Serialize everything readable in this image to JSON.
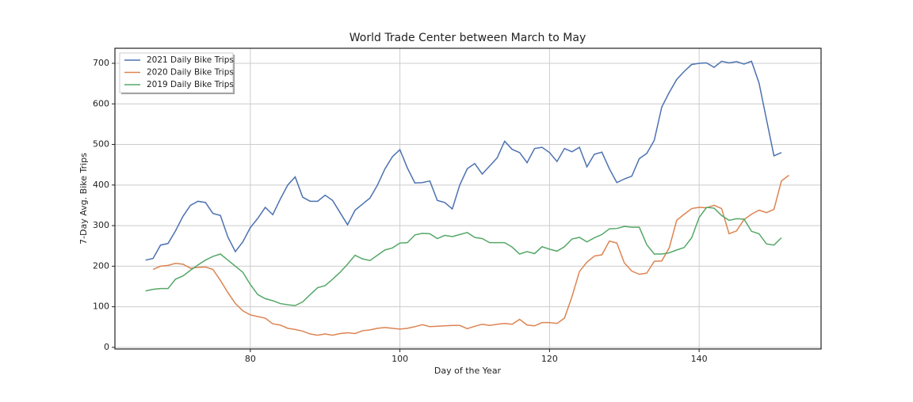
{
  "chart_data": {
    "type": "line",
    "title": "World Trade Center between March to May",
    "xlabel": "Day of the Year",
    "ylabel": "7-Day Avg. Bike Trips",
    "x": [
      66,
      67,
      68,
      69,
      70,
      71,
      72,
      73,
      74,
      75,
      76,
      77,
      78,
      79,
      80,
      81,
      82,
      83,
      84,
      85,
      86,
      87,
      88,
      89,
      90,
      91,
      92,
      93,
      94,
      95,
      96,
      97,
      98,
      99,
      100,
      101,
      102,
      103,
      104,
      105,
      106,
      107,
      108,
      109,
      110,
      111,
      112,
      113,
      114,
      115,
      116,
      117,
      118,
      119,
      120,
      121,
      122,
      123,
      124,
      125,
      126,
      127,
      128,
      129,
      130,
      131,
      132,
      133,
      134,
      135,
      136,
      137,
      138,
      139,
      140,
      141,
      142,
      143,
      144,
      145,
      146,
      147,
      148,
      149,
      150,
      151,
      152
    ],
    "series": [
      {
        "name": "2021 Daily Bike Trips",
        "color": "#4c72b0",
        "values": [
          215,
          219,
          252,
          256,
          287,
          323,
          350,
          360,
          357,
          330,
          325,
          272,
          236,
          260,
          295,
          318,
          345,
          327,
          365,
          400,
          420,
          370,
          360,
          360,
          375,
          362,
          332,
          302,
          338,
          353,
          368,
          400,
          440,
          470,
          487,
          442,
          405,
          406,
          410,
          362,
          357,
          341,
          400,
          440,
          453,
          427,
          447,
          467,
          508,
          488,
          480,
          455,
          490,
          493,
          480,
          458,
          490,
          482,
          493,
          445,
          476,
          481,
          440,
          406,
          415,
          422,
          465,
          478,
          510,
          592,
          628,
          660,
          680,
          697,
          700,
          701,
          690,
          705,
          701,
          704,
          698,
          705,
          652,
          562,
          472,
          480,
          null
        ]
      },
      {
        "name": "2020 Daily Bike Trips",
        "color": "#dd8452",
        "values": [
          null,
          192,
          200,
          202,
          207,
          205,
          195,
          197,
          198,
          192,
          165,
          135,
          108,
          90,
          80,
          76,
          72,
          58,
          55,
          47,
          44,
          40,
          33,
          30,
          33,
          30,
          34,
          36,
          34,
          41,
          43,
          47,
          49,
          47,
          45,
          47,
          51,
          56,
          51,
          52,
          53,
          54,
          54,
          46,
          52,
          57,
          54,
          57,
          59,
          57,
          69,
          55,
          53,
          61,
          61,
          59,
          72,
          125,
          187,
          210,
          225,
          228,
          262,
          257,
          208,
          188,
          180,
          183,
          212,
          213,
          245,
          313,
          328,
          342,
          345,
          344,
          350,
          342,
          280,
          287,
          315,
          328,
          338,
          332,
          340,
          410,
          424
        ]
      },
      {
        "name": "2019 Daily Bike Trips",
        "color": "#55a868",
        "values": [
          139,
          143,
          145,
          145,
          168,
          176,
          190,
          203,
          215,
          224,
          230,
          215,
          200,
          185,
          155,
          130,
          120,
          115,
          108,
          105,
          103,
          112,
          130,
          147,
          152,
          168,
          185,
          205,
          227,
          218,
          214,
          227,
          240,
          245,
          257,
          258,
          277,
          281,
          280,
          268,
          276,
          273,
          278,
          283,
          271,
          268,
          258,
          258,
          258,
          247,
          230,
          236,
          231,
          248,
          242,
          237,
          248,
          267,
          271,
          260,
          270,
          278,
          292,
          293,
          298,
          296,
          296,
          253,
          230,
          230,
          233,
          240,
          246,
          270,
          320,
          345,
          343,
          325,
          313,
          317,
          316,
          286,
          280,
          255,
          252,
          270,
          null
        ]
      }
    ],
    "xlim": [
      61.9,
      156.3
    ],
    "ylim": [
      -4,
      737
    ],
    "xticks": [
      80,
      100,
      120,
      140
    ],
    "yticks": [
      0,
      100,
      200,
      300,
      400,
      500,
      600,
      700
    ],
    "grid": true,
    "legend": "upper left"
  }
}
